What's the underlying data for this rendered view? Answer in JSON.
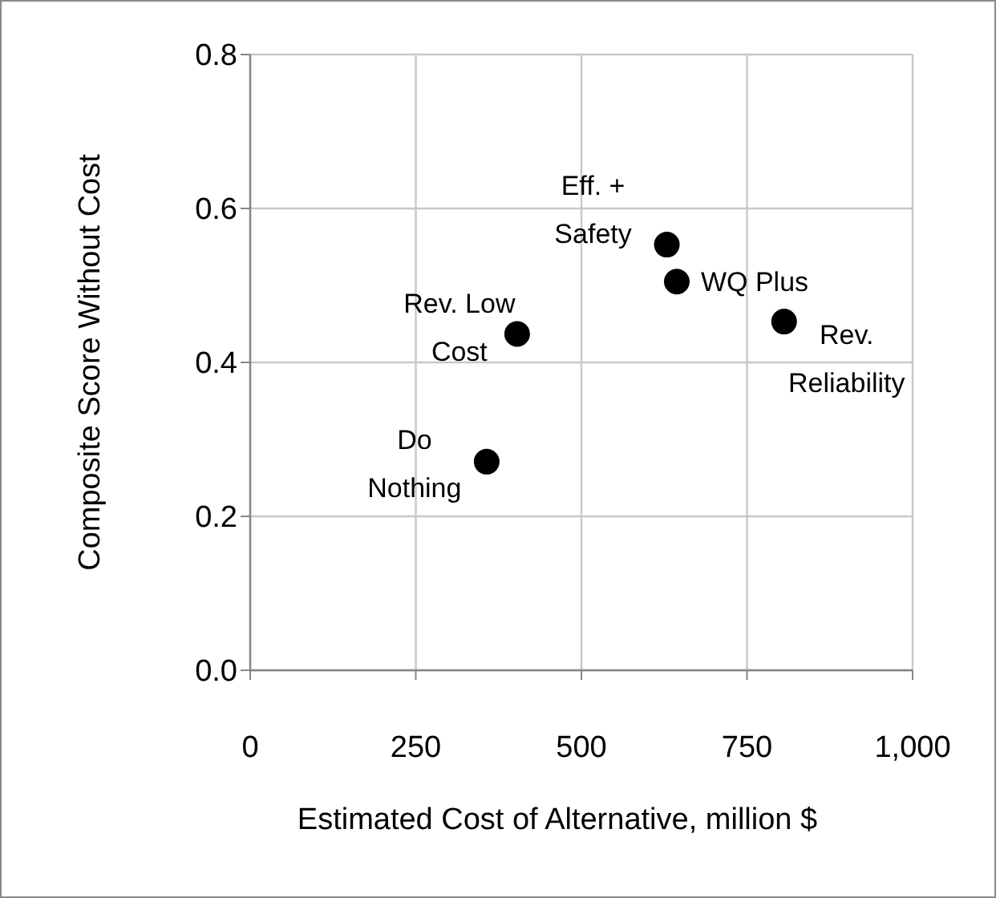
{
  "chart_data": {
    "type": "scatter",
    "xlabel": "Estimated Cost of Alternative, million $",
    "ylabel": "Composite Score Without Cost",
    "x": [
      357,
      403,
      629,
      644,
      806
    ],
    "series": [
      {
        "color": "#000000",
        "values": [
          0.271,
          0.437,
          0.553,
          0.505,
          0.453
        ]
      }
    ],
    "xlim": [
      0,
      1000
    ],
    "xticks": [
      0,
      250,
      500,
      750,
      {
        "value": 1000,
        "label": "1,000"
      }
    ],
    "ylim": [
      0,
      0.8
    ],
    "yticks": [
      {
        "value": 0,
        "label": "0.0"
      },
      {
        "value": 0.2,
        "label": "0.2"
      },
      {
        "value": 0.4,
        "label": "0.4"
      },
      {
        "value": 0.6,
        "label": "0.6"
      },
      {
        "value": 0.8,
        "label": "0.8"
      }
    ],
    "grid": true,
    "marker": "circle",
    "annotations": [
      {
        "text": "Do\nNothing",
        "x": 357,
        "y": 0.271
      },
      {
        "text": "Rev. Low\nCost",
        "x": 403,
        "y": 0.437
      },
      {
        "text": "Eff. +\nSafety",
        "x": 629,
        "y": 0.553
      },
      {
        "text": "WQ Plus",
        "x": 644,
        "y": 0.505
      },
      {
        "text": "Rev.\nReliability",
        "x": 806,
        "y": 0.453
      }
    ]
  }
}
